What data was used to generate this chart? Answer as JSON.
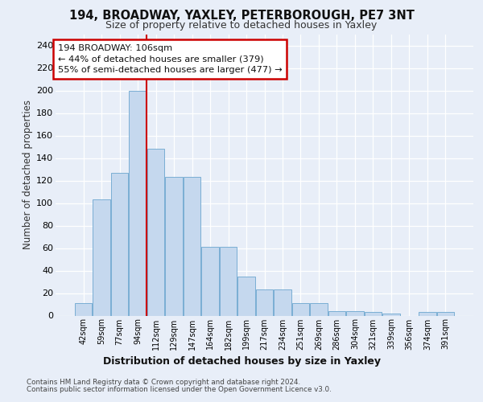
{
  "title1": "194, BROADWAY, YAXLEY, PETERBOROUGH, PE7 3NT",
  "title2": "Size of property relative to detached houses in Yaxley",
  "xlabel": "Distribution of detached houses by size in Yaxley",
  "ylabel": "Number of detached properties",
  "categories": [
    "42sqm",
    "59sqm",
    "77sqm",
    "94sqm",
    "112sqm",
    "129sqm",
    "147sqm",
    "164sqm",
    "182sqm",
    "199sqm",
    "217sqm",
    "234sqm",
    "251sqm",
    "269sqm",
    "286sqm",
    "304sqm",
    "321sqm",
    "339sqm",
    "356sqm",
    "374sqm",
    "391sqm"
  ],
  "values": [
    11,
    103,
    127,
    200,
    148,
    123,
    123,
    61,
    61,
    35,
    23,
    23,
    11,
    11,
    4,
    4,
    3,
    2,
    0,
    3,
    3
  ],
  "bar_color": "#c5d8ee",
  "bar_edge_color": "#7aaed4",
  "annotation_line1": "194 BROADWAY: 106sqm",
  "annotation_line2": "← 44% of detached houses are smaller (379)",
  "annotation_line3": "55% of semi-detached houses are larger (477) →",
  "vline_color": "#cc0000",
  "ylim": [
    0,
    250
  ],
  "yticks": [
    0,
    20,
    40,
    60,
    80,
    100,
    120,
    140,
    160,
    180,
    200,
    220,
    240
  ],
  "footer_line1": "Contains HM Land Registry data © Crown copyright and database right 2024.",
  "footer_line2": "Contains public sector information licensed under the Open Government Licence v3.0.",
  "bg_color": "#e8eef8",
  "grid_color": "#ffffff"
}
